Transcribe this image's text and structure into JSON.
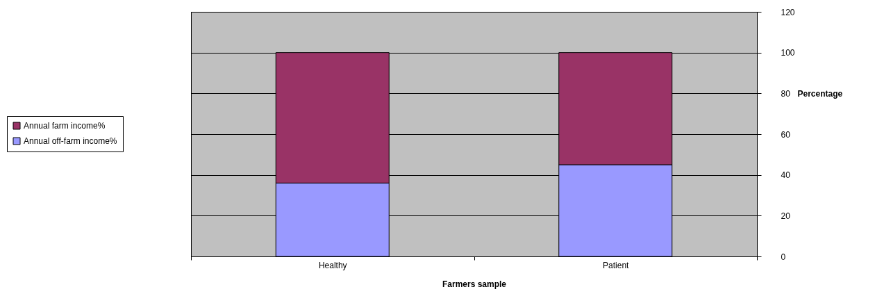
{
  "chart_data": {
    "type": "bar",
    "xlabel": "Farmers sample",
    "ylabel": "Percentage",
    "categories": [
      "Healthy",
      "Patient"
    ],
    "stacked": true,
    "series": [
      {
        "name": "Annual off-farm income%",
        "color": "#9999ff",
        "values": [
          36,
          45
        ]
      },
      {
        "name": "Annual farm income%",
        "color": "#993366",
        "values": [
          64,
          55
        ]
      }
    ],
    "ylim": [
      0,
      120
    ],
    "yticks": [
      0,
      20,
      40,
      60,
      80,
      100,
      120
    ],
    "grid": "y",
    "legend": "left"
  }
}
